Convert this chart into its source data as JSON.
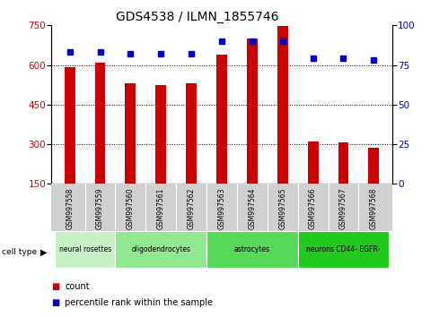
{
  "title": "GDS4538 / ILMN_1855746",
  "samples": [
    "GSM997558",
    "GSM997559",
    "GSM997560",
    "GSM997561",
    "GSM997562",
    "GSM997563",
    "GSM997564",
    "GSM997565",
    "GSM997566",
    "GSM997567",
    "GSM997568"
  ],
  "counts": [
    592,
    608,
    530,
    525,
    530,
    638,
    700,
    748,
    312,
    308,
    285
  ],
  "percentiles": [
    83,
    83,
    82,
    82,
    82,
    90,
    90,
    90,
    79,
    79,
    78
  ],
  "cell_types": [
    {
      "label": "neural rosettes",
      "start": 0,
      "end": 1,
      "color": "#c8f0c8"
    },
    {
      "label": "oligodendrocytes",
      "start": 2,
      "end": 4,
      "color": "#90e890"
    },
    {
      "label": "astrocytes",
      "start": 5,
      "end": 7,
      "color": "#58d858"
    },
    {
      "label": "neurons CD44- EGFR-",
      "start": 8,
      "end": 10,
      "color": "#20c820"
    }
  ],
  "ylim_left": [
    150,
    750
  ],
  "ylim_right": [
    0,
    100
  ],
  "yticks_left": [
    150,
    300,
    450,
    600,
    750
  ],
  "yticks_right": [
    0,
    25,
    50,
    75,
    100
  ],
  "bar_color": "#cc0000",
  "dot_color": "#0000cc",
  "legend_count_label": "count",
  "legend_pct_label": "percentile rank within the sample"
}
